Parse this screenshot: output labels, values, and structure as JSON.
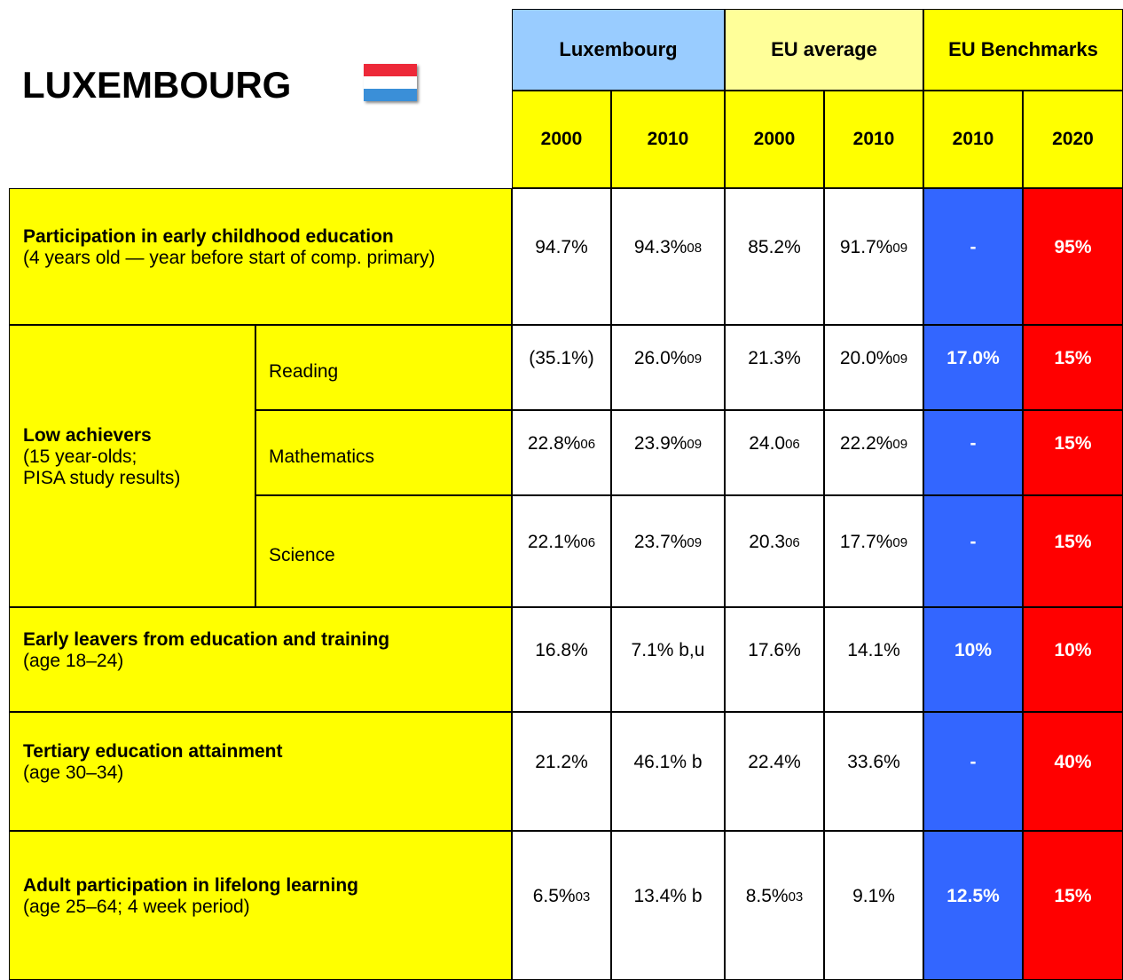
{
  "title": "LUXEMBOURG",
  "header": {
    "groups": [
      "Luxembourg",
      "EU average",
      "EU Benchmarks"
    ],
    "years": [
      "2000",
      "2010",
      "2000",
      "2010",
      "2010",
      "2020"
    ]
  },
  "rows": [
    {
      "label": "Participation in early childhood education",
      "note": [
        "(4 years old — year before start of comp. primary)"
      ],
      "cells": [
        "94.7%",
        {
          "text": "94.3%",
          "sup": "08"
        },
        "85.2%",
        {
          "text": "91.7%",
          "sup": "09"
        },
        "-",
        "95%"
      ]
    },
    {
      "label": "Low achievers",
      "note": [
        "(15 year-olds;",
        "PISA study results)"
      ],
      "subrows": [
        {
          "label": "Reading",
          "cells": [
            "(35.1%)",
            {
              "text": "26.0%",
              "sup": "09"
            },
            "21.3%",
            {
              "text": "20.0%",
              "sup": "09"
            },
            "17.0%",
            "15%"
          ]
        },
        {
          "label": "Mathematics",
          "cells": [
            {
              "text": "22.8%",
              "sup": "06"
            },
            {
              "text": "23.9%",
              "sup": "09"
            },
            {
              "text": "24.0",
              "sup": "06"
            },
            {
              "text": "22.2%",
              "sup": "09"
            },
            "-",
            "15%"
          ]
        },
        {
          "label": "Science",
          "cells": [
            {
              "text": "22.1%",
              "sup": "06"
            },
            {
              "text": "23.7%",
              "sup": "09"
            },
            {
              "text": "20.3",
              "sup": "06"
            },
            {
              "text": "17.7%",
              "sup": "09"
            },
            "-",
            "15%"
          ]
        }
      ]
    },
    {
      "label": "Early leavers from education and training",
      "note": [
        "(age 18–24)"
      ],
      "cells": [
        "16.8%",
        "7.1% b,u",
        "17.6%",
        "14.1%",
        "10%",
        "10%"
      ]
    },
    {
      "label": "Tertiary education attainment",
      "note": [
        "(age 30–34)"
      ],
      "cells": [
        "21.2%",
        "46.1% b",
        "22.4%",
        "33.6%",
        "-",
        "40%"
      ]
    },
    {
      "label": "Adult participation in lifelong learning",
      "note": [
        "(age 25–64; 4 week period)"
      ],
      "cells": [
        {
          "text": "6.5%",
          "sup": "03"
        },
        "13.4% b",
        {
          "text": "8.5%",
          "sup": "03"
        },
        "9.1%",
        "12.5%",
        "15%"
      ]
    }
  ]
}
